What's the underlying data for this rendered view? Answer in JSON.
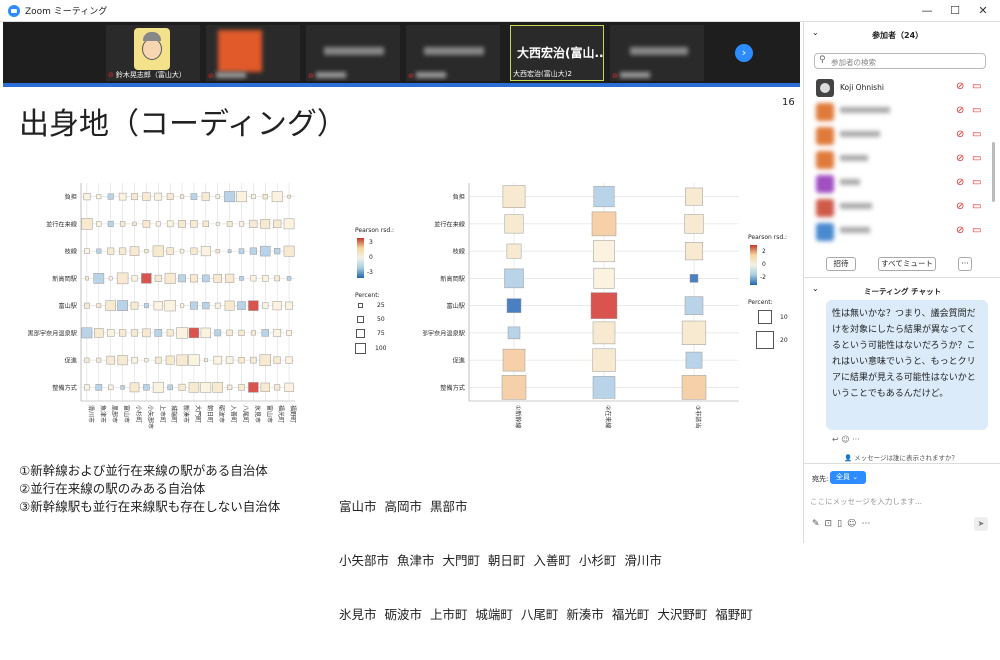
{
  "window": {
    "title": "Zoom ミーティング"
  },
  "strip": {
    "tiles": [
      {
        "name": "鈴木晃志郎（富山大）",
        "muted": true
      },
      {
        "name": "",
        "muted": true
      },
      {
        "name": "",
        "muted": true
      },
      {
        "name": "",
        "muted": true
      },
      {
        "name": "大西宏治(富山大)2",
        "muted": false,
        "overlay": "大西宏治(富山...",
        "active": true
      },
      {
        "name": "",
        "muted": true
      },
      {
        "name": "",
        "muted": true
      }
    ]
  },
  "slide": {
    "page_number": "16",
    "title": "出身地（コーディング）",
    "legend1": {
      "title": "Pearson rsd.:",
      "ticks": [
        "3",
        "0",
        "-3"
      ],
      "percent_title": "Percent:",
      "percent": [
        "25",
        "50",
        "75",
        "100"
      ]
    },
    "legend2": {
      "title": "Pearson rsd.:",
      "ticks": [
        "2",
        "0",
        "-2"
      ],
      "percent_title": "Percent:",
      "percent": [
        "10",
        "20"
      ]
    },
    "notes": [
      "①新幹線および並行在来線の駅がある自治体",
      "②並行在来線の駅のみある自治体",
      "③新幹線駅も並行在来線駅も存在しない自治体"
    ],
    "groups": [
      "富山市 高岡市 黒部市",
      "小矢部市 魚津市 大門町 朝日町 入善町 小杉町 滑川市",
      "氷見市 砺波市 上市町 城端町 八尾町 新湊市 福光町 大沢野町 福野町"
    ]
  },
  "chart_data": [
    {
      "type": "heatmap",
      "rows": [
        "負担",
        "並行在来線",
        "枝線",
        "新高岡駅",
        "富山駅",
        "黒部宇奈月温泉駅",
        "促進",
        "整備方式"
      ],
      "columns": [
        "滑川市",
        "魚津市",
        "黒部市",
        "富山市",
        "小杉町",
        "小矢部市",
        "上市町",
        "城端町",
        "新湊市",
        "大門町",
        "朝日町",
        "砺波市",
        "入善町",
        "八尾町",
        "氷見市",
        "富山市",
        "福光町",
        "福野町"
      ],
      "highlights": [
        {
          "row": "富山駅",
          "column": "氷見市",
          "value": "positive"
        },
        {
          "row": "整備方式",
          "column": "氷見市",
          "value": "positive"
        },
        {
          "row": "新高岡駅",
          "column": "小矢部市",
          "value": "positive"
        },
        {
          "row": "黒部宇奈月温泉駅",
          "column": "大門町",
          "value": "positive"
        }
      ]
    },
    {
      "type": "heatmap",
      "rows": [
        "負担",
        "並行在来線",
        "枝線",
        "新高岡駅",
        "富山駅",
        "黒部宇奈月温泉駅",
        "促進",
        "整備方式"
      ],
      "columns": [
        "①新幹線",
        "②在来線",
        "③非該当"
      ]
    }
  ],
  "sidebar": {
    "participants_title": "参加者（24）",
    "search_placeholder": "参加者の検索",
    "participants": [
      {
        "name": "Koji Ohnishi"
      },
      {
        "name": ""
      },
      {
        "name": ""
      },
      {
        "name": ""
      },
      {
        "name": ""
      },
      {
        "name": ""
      },
      {
        "name": ""
      }
    ],
    "invite": "招待",
    "mute_all": "すべてミュート",
    "more": "···",
    "chat_title": "ミーティング チャット",
    "chat_message": "性は無いかな？つまり、議会質問だけを対象にしたら結果が異なってくるという可能性はないだろうか？これはいい意味でいうと、もっとクリアに結果が見える可能性はないかということでもあるんだけど。",
    "visibility": "メッセージは誰に表示されますか？",
    "to_label": "宛先:",
    "to_value": "全員",
    "input_placeholder": "ここにメッセージを入力します..."
  },
  "colors": {
    "accent": "#2d8cff",
    "positive": "#e05a4f",
    "negative": "#4a7fc1"
  }
}
